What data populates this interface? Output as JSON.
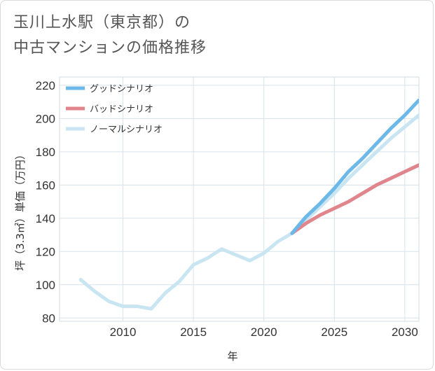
{
  "title": {
    "line1": "玉川上水駅（東京都）の",
    "line2": "中古マンションの価格推移"
  },
  "chart_data": {
    "type": "line",
    "xlabel": "年",
    "ylabel": "坪（3.3㎡）単価（万円）",
    "xlim": [
      2005.5,
      2031
    ],
    "ylim": [
      78,
      225
    ],
    "x_ticks": [
      2010,
      2015,
      2020,
      2025,
      2030
    ],
    "y_ticks": [
      80,
      100,
      120,
      140,
      160,
      180,
      200,
      220
    ],
    "grid": true,
    "legend_position": "top-left",
    "historical": {
      "color": "#c9e5f2",
      "x": [
        2007,
        2008,
        2009,
        2010,
        2011,
        2012,
        2013,
        2014,
        2015,
        2016,
        2017,
        2018,
        2019,
        2020,
        2021,
        2022
      ],
      "values": [
        103,
        96,
        90,
        87,
        87,
        85.5,
        95,
        102,
        112,
        116,
        121.5,
        118,
        114.5,
        119,
        126,
        131
      ]
    },
    "series": [
      {
        "name": "グッドシナリオ",
        "color": "#6cb8e8",
        "x": [
          2022,
          2023,
          2024,
          2025,
          2026,
          2027,
          2028,
          2029,
          2030,
          2031
        ],
        "values": [
          131,
          141,
          149,
          158,
          168,
          176,
          185,
          194,
          202,
          211
        ]
      },
      {
        "name": "バッドシナリオ",
        "color": "#e0858c",
        "x": [
          2022,
          2023,
          2024,
          2025,
          2026,
          2027,
          2028,
          2029,
          2030,
          2031
        ],
        "values": [
          131,
          137,
          142,
          146,
          150,
          155,
          160,
          164,
          168,
          172
        ]
      },
      {
        "name": "ノーマルシナリオ",
        "color": "#c9e5f2",
        "x": [
          2022,
          2023,
          2024,
          2025,
          2026,
          2027,
          2028,
          2029,
          2030,
          2031
        ],
        "values": [
          131,
          139,
          147,
          155,
          164,
          172,
          180,
          188,
          195,
          202
        ]
      }
    ]
  }
}
